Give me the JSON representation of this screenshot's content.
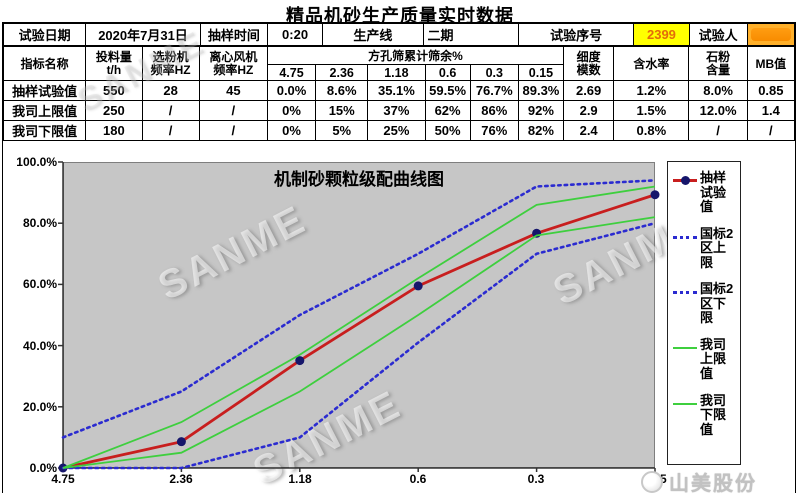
{
  "page": {
    "title": "精品机砂生产质量实时数据"
  },
  "table": {
    "info": [
      {
        "label": "试验日期",
        "value": "2020年7月31日"
      },
      {
        "label": "抽样时间",
        "value": "0:20"
      },
      {
        "label": "生产线",
        "value": "二期"
      },
      {
        "label": "试验序号",
        "value": "2399"
      },
      {
        "label": "试验人",
        "value": ""
      }
    ],
    "header": {
      "indicator": "指标名称",
      "feed": [
        "投料量",
        "t/h"
      ],
      "classifier": [
        "选粉机",
        "频率HZ"
      ],
      "fan": [
        "离心风机",
        "频率HZ"
      ],
      "sieve_group": "方孔筛累计筛余%",
      "sieves": [
        "4.75",
        "2.36",
        "1.18",
        "0.6",
        "0.3",
        "0.15"
      ],
      "fineness": [
        "细度",
        "模数"
      ],
      "moisture": "含水率",
      "stone": [
        "石粉",
        "含量"
      ],
      "mb": "MB值"
    },
    "rows": [
      {
        "name": "抽样试验值",
        "cells": [
          "550",
          "28",
          "45",
          "0.0%",
          "8.6%",
          "35.1%",
          "59.5%",
          "76.7%",
          "89.3%",
          "2.69",
          "1.2%",
          "8.0%",
          "0.85"
        ]
      },
      {
        "name": "我司上限值",
        "cells": [
          "250",
          "/",
          "/",
          "0%",
          "15%",
          "37%",
          "62%",
          "86%",
          "92%",
          "2.9",
          "1.5%",
          "12.0%",
          "1.4"
        ]
      },
      {
        "name": "我司下限值",
        "cells": [
          "180",
          "/",
          "/",
          "0%",
          "5%",
          "25%",
          "50%",
          "76%",
          "82%",
          "2.4",
          "0.8%",
          "/",
          "/"
        ]
      }
    ]
  },
  "chart_data": {
    "type": "line",
    "title": "机制砂颗粒级配曲线图",
    "categories": [
      "4.75",
      "2.36",
      "1.18",
      "0.6",
      "0.3",
      "0.15"
    ],
    "y_ticks": [
      "0.0%",
      "20.0%",
      "40.0%",
      "60.0%",
      "80.0%",
      "100.0%"
    ],
    "ylim": [
      0,
      100
    ],
    "xlabel": "",
    "ylabel": "",
    "grid": false,
    "legend_position": "right",
    "plot_bg": "#c6c6c6",
    "series": [
      {
        "name": "抽样试验值",
        "values": [
          0,
          8.6,
          35.1,
          59.5,
          76.7,
          89.3
        ],
        "color": "#c81e1e",
        "style": "solid",
        "width": 2.8,
        "marker": "circle",
        "marker_color": "#16166b"
      },
      {
        "name": "国标2区上限",
        "values": [
          10,
          25,
          50,
          70,
          92,
          94
        ],
        "color": "#2b2bd0",
        "style": "dotted",
        "width": 2.6
      },
      {
        "name": "国标2区下限",
        "values": [
          0,
          0,
          10,
          41,
          70,
          80
        ],
        "color": "#2b2bd0",
        "style": "dotted",
        "width": 2.6
      },
      {
        "name": "我司上限值",
        "values": [
          0,
          15,
          37,
          62,
          86,
          92
        ],
        "color": "#3ecf3e",
        "style": "solid",
        "width": 1.8
      },
      {
        "name": "我司下限值",
        "values": [
          0,
          5,
          25,
          50,
          76,
          82
        ],
        "color": "#3ecf3e",
        "style": "solid",
        "width": 1.8
      }
    ]
  },
  "watermark": "SANME",
  "logo": {
    "company": "山美股份"
  },
  "colors": {
    "serial_bg": "#ffff00",
    "serial_text": "#e36c0a",
    "tester_bg": "#ff9d12"
  }
}
